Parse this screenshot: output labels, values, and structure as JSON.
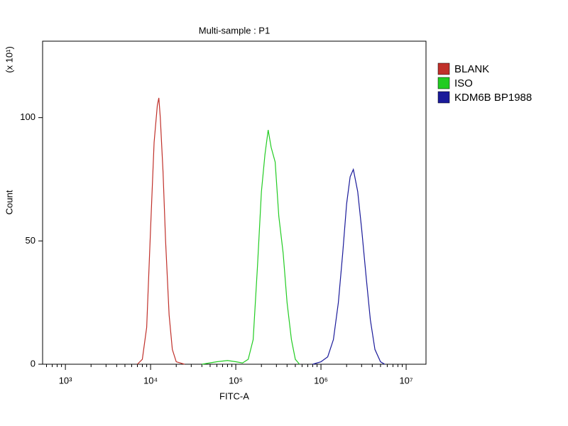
{
  "chart_data": {
    "type": "line",
    "title": "Multi-sample : P1",
    "xlabel": "FITC-A",
    "ylabel": "Count",
    "y_multiplier": "(x 10¹)",
    "xscale": "log",
    "xlim": [
      540,
      17100000
    ],
    "ylim": [
      0,
      131
    ],
    "xticks": [
      {
        "value": 1000,
        "label": "10³"
      },
      {
        "value": 10000,
        "label": "10⁴"
      },
      {
        "value": 100000,
        "label": "10⁵"
      },
      {
        "value": 1000000,
        "label": "10⁶"
      },
      {
        "value": 10000000,
        "label": "10⁷"
      }
    ],
    "yticks": [
      0,
      50,
      100
    ],
    "legend": "right",
    "series": [
      {
        "name": "BLANK",
        "color": "#c0302a",
        "x": [
          7000,
          8000,
          9000,
          10000,
          11000,
          12000,
          12500,
          13000,
          14000,
          15000,
          16500,
          18000,
          20000,
          25000
        ],
        "values": [
          0,
          2,
          15,
          55,
          90,
          105,
          108,
          100,
          78,
          50,
          20,
          6,
          1,
          0
        ]
      },
      {
        "name": "ISO",
        "color": "#22cc22",
        "x": [
          40000,
          60000,
          80000,
          100000,
          120000,
          140000,
          160000,
          180000,
          200000,
          220000,
          240000,
          260000,
          290000,
          320000,
          360000,
          400000,
          450000,
          500000,
          560000
        ],
        "values": [
          0,
          1,
          1.5,
          1,
          0.5,
          2,
          10,
          40,
          70,
          85,
          95,
          88,
          82,
          60,
          45,
          25,
          10,
          2,
          0
        ]
      },
      {
        "name": "KDM6B BP1988",
        "color": "#1a1a9a",
        "x": [
          800000,
          1000000,
          1200000,
          1400000,
          1600000,
          1800000,
          2000000,
          2200000,
          2400000,
          2700000,
          3000000,
          3400000,
          3800000,
          4300000,
          5000000,
          5600000
        ],
        "values": [
          0,
          1,
          3,
          10,
          25,
          45,
          65,
          76,
          79,
          70,
          55,
          35,
          18,
          6,
          1,
          0
        ]
      }
    ]
  }
}
